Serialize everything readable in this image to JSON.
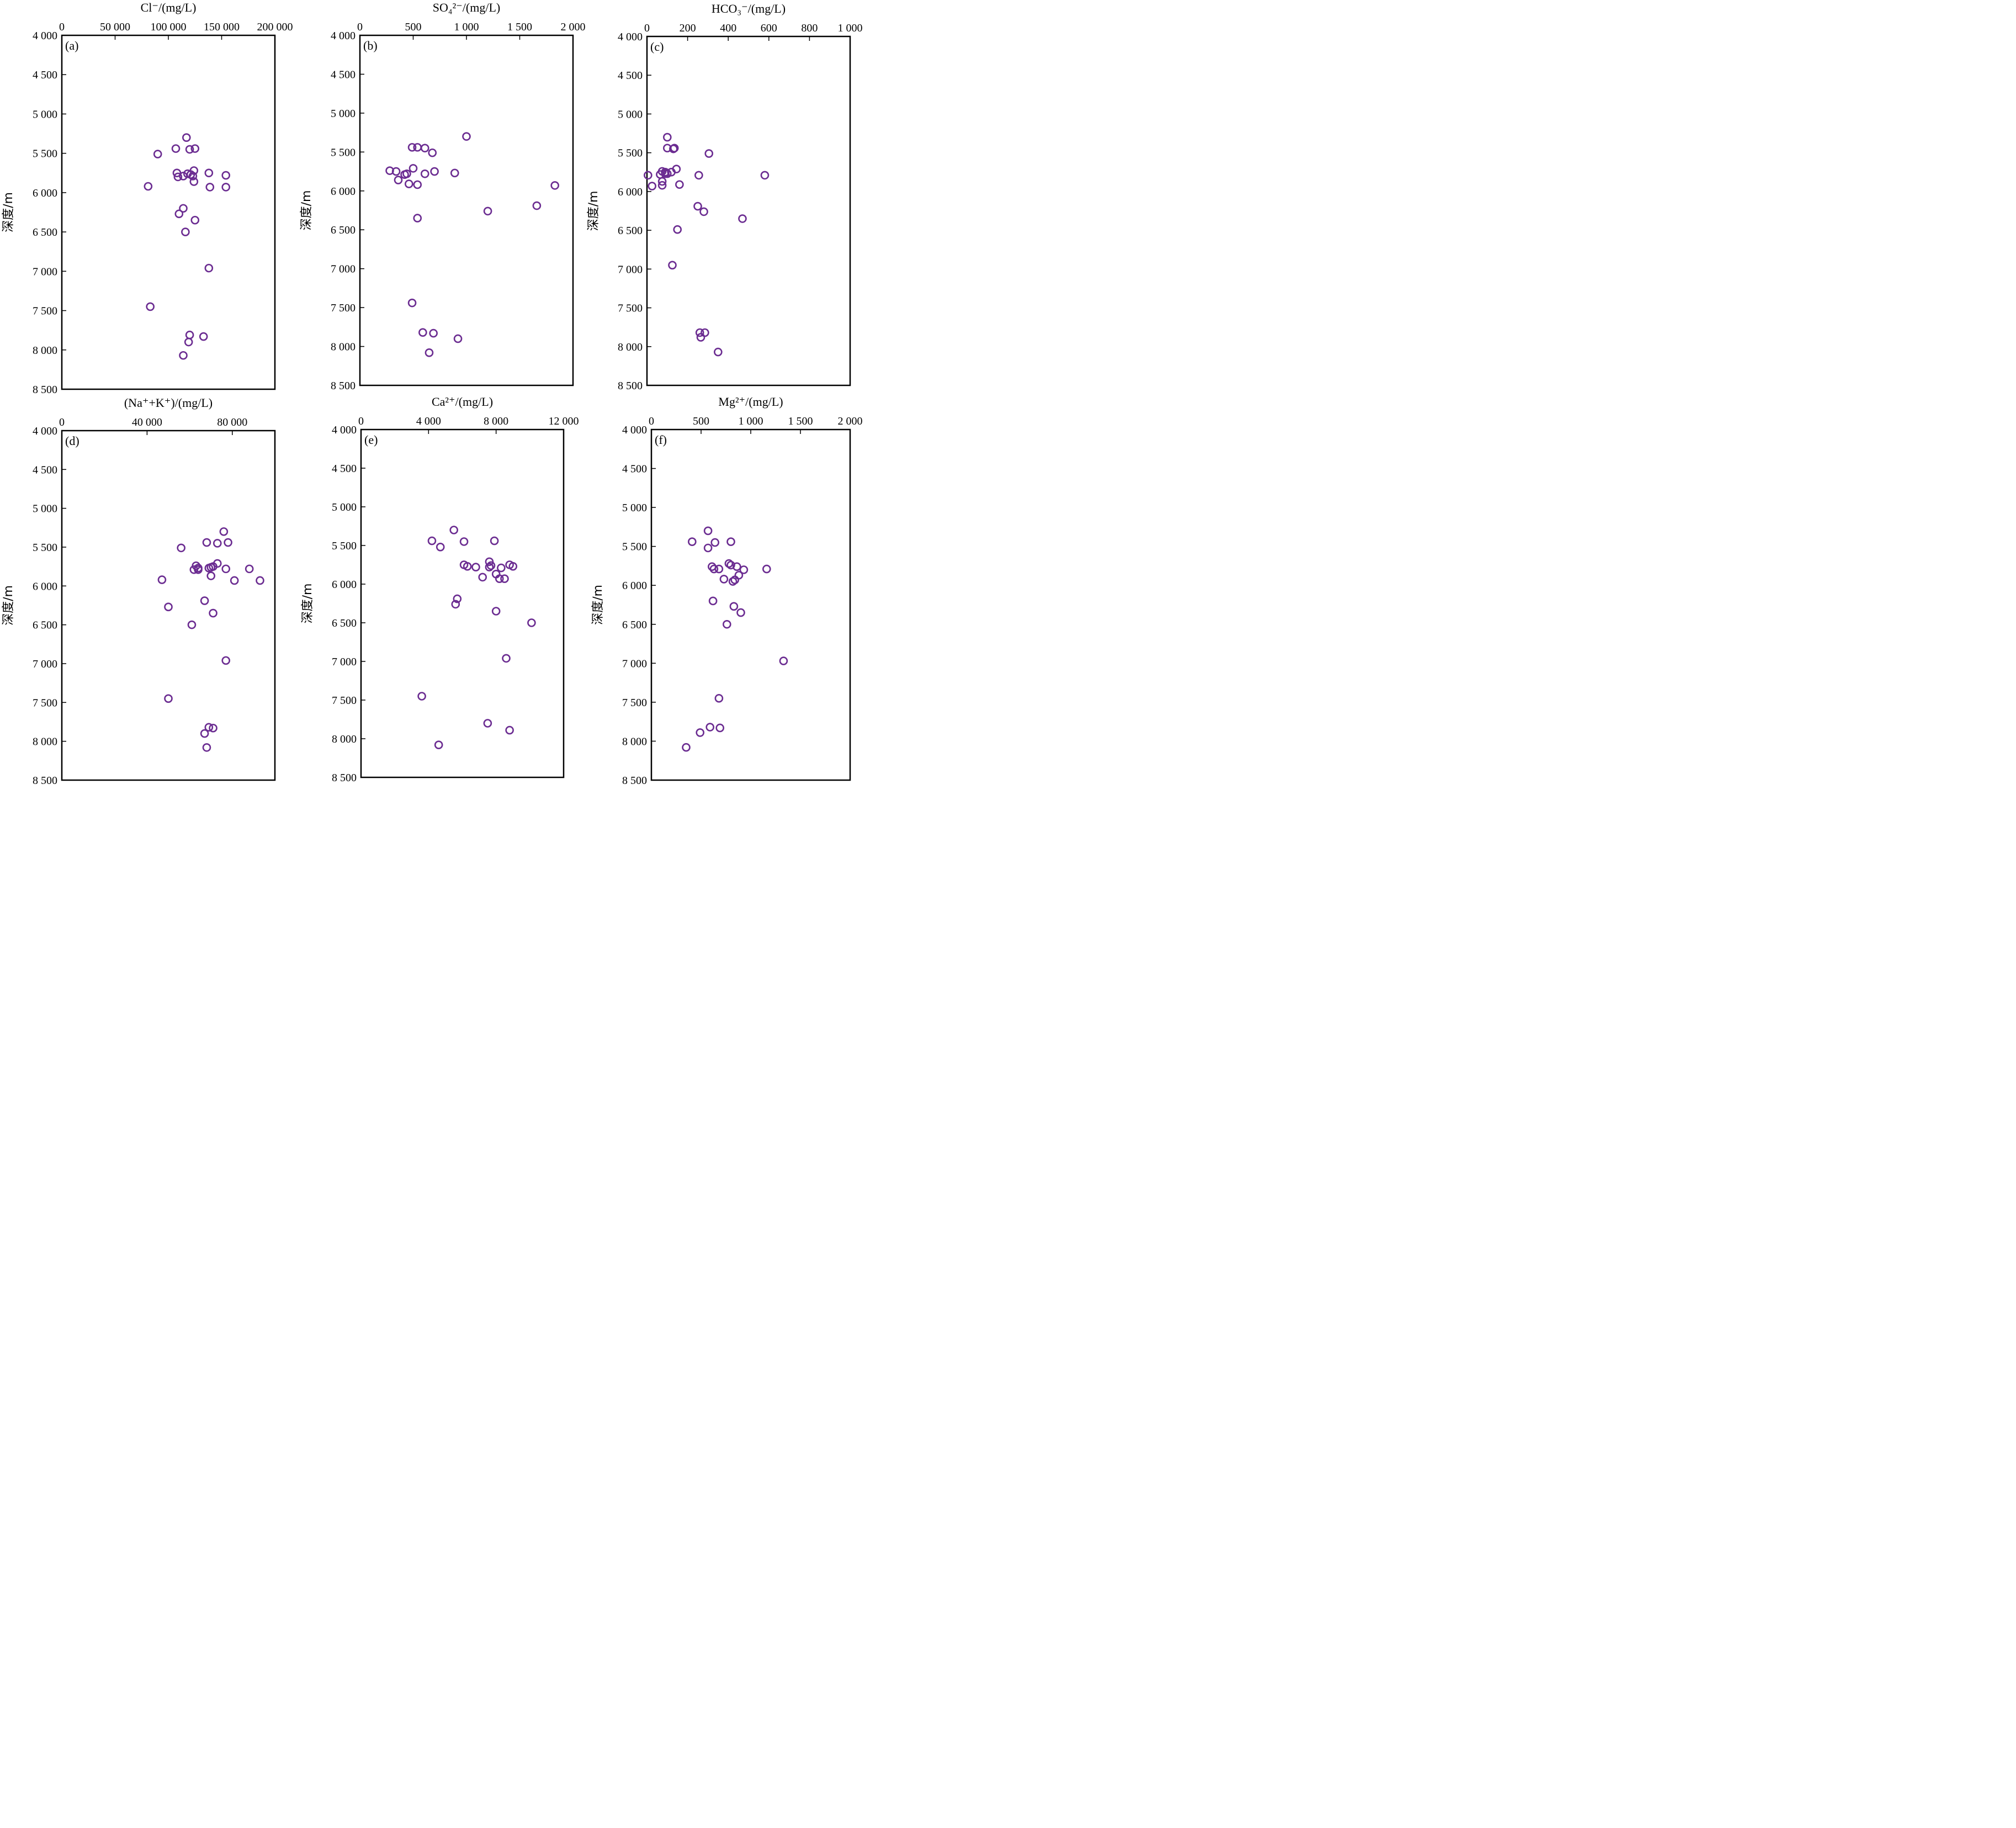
{
  "figure": {
    "marker_color": "#6b2c91"
  },
  "chart_data": [
    {
      "panel": "(a)",
      "type": "scatter",
      "xlabel": "Cl⁻/(mg/L)",
      "ylabel": "深度/m",
      "x_axis_position": "top",
      "y_inverted": true,
      "xlim": [
        0,
        200000
      ],
      "ylim": [
        4000,
        8500
      ],
      "xticks": [
        0,
        50000,
        100000,
        150000,
        200000
      ],
      "xtick_labels": [
        "0",
        "50 000",
        "100 000",
        "150 000",
        "200 000"
      ],
      "yticks": [
        4000,
        4500,
        5000,
        5500,
        6000,
        6500,
        7000,
        7500,
        8000,
        8500
      ],
      "ytick_labels": [
        "4 000",
        "4 500",
        "5 000",
        "5 500",
        "6 000",
        "6 500",
        "7 000",
        "7 500",
        "8 000",
        "8 500"
      ],
      "points": [
        [
          117000,
          5300
        ],
        [
          107000,
          5440
        ],
        [
          125000,
          5440
        ],
        [
          120000,
          5450
        ],
        [
          90000,
          5510
        ],
        [
          124000,
          5720
        ],
        [
          108000,
          5750
        ],
        [
          138000,
          5750
        ],
        [
          118000,
          5760
        ],
        [
          121000,
          5770
        ],
        [
          114000,
          5790
        ],
        [
          123000,
          5790
        ],
        [
          109000,
          5800
        ],
        [
          154000,
          5780
        ],
        [
          124000,
          5860
        ],
        [
          81000,
          5920
        ],
        [
          139000,
          5930
        ],
        [
          154000,
          5930
        ],
        [
          114000,
          6200
        ],
        [
          110000,
          6270
        ],
        [
          125000,
          6350
        ],
        [
          116000,
          6500
        ],
        [
          138000,
          6960
        ],
        [
          83000,
          7450
        ],
        [
          120000,
          7810
        ],
        [
          133000,
          7830
        ],
        [
          119000,
          7900
        ],
        [
          114000,
          8070
        ]
      ]
    },
    {
      "panel": "(b)",
      "type": "scatter",
      "xlabel": "SO₄²⁻/(mg/L)",
      "ylabel": "深度/m",
      "x_axis_position": "top",
      "y_inverted": true,
      "xlim": [
        0,
        2000
      ],
      "ylim": [
        4000,
        8500
      ],
      "xticks": [
        0,
        500,
        1000,
        1500,
        2000
      ],
      "xtick_labels": [
        "0",
        "500",
        "1 000",
        "1 500",
        "2 000"
      ],
      "yticks": [
        4000,
        4500,
        5000,
        5500,
        6000,
        6500,
        7000,
        7500,
        8000,
        8500
      ],
      "ytick_labels": [
        "4 000",
        "4 500",
        "5 000",
        "5 500",
        "6 000",
        "6 500",
        "7 000",
        "7 500",
        "8 000",
        "8 500"
      ],
      "points": [
        [
          1000,
          5300
        ],
        [
          490,
          5440
        ],
        [
          540,
          5440
        ],
        [
          610,
          5450
        ],
        [
          680,
          5510
        ],
        [
          500,
          5710
        ],
        [
          280,
          5740
        ],
        [
          340,
          5750
        ],
        [
          700,
          5750
        ],
        [
          440,
          5780
        ],
        [
          610,
          5780
        ],
        [
          890,
          5770
        ],
        [
          420,
          5790
        ],
        [
          360,
          5860
        ],
        [
          1830,
          5930
        ],
        [
          460,
          5910
        ],
        [
          540,
          5920
        ],
        [
          1660,
          6190
        ],
        [
          1200,
          6260
        ],
        [
          540,
          6350
        ],
        [
          490,
          7440
        ],
        [
          590,
          7820
        ],
        [
          690,
          7830
        ],
        [
          920,
          7900
        ],
        [
          650,
          8080
        ]
      ]
    },
    {
      "panel": "(c)",
      "type": "scatter",
      "xlabel": "HCO₃⁻/(mg/L)",
      "ylabel": "深度/m",
      "x_axis_position": "top",
      "y_inverted": true,
      "xlim": [
        0,
        1000
      ],
      "ylim": [
        4000,
        8500
      ],
      "xticks": [
        0,
        200,
        400,
        600,
        800,
        1000
      ],
      "xtick_labels": [
        "0",
        "200",
        "400",
        "600",
        "800",
        "1 000"
      ],
      "yticks": [
        4000,
        4500,
        5000,
        5500,
        6000,
        6500,
        7000,
        7500,
        8000,
        8500
      ],
      "ytick_labels": [
        "4 000",
        "4 500",
        "5 000",
        "5 500",
        "6 000",
        "6 500",
        "7 000",
        "7 500",
        "8 000",
        "8 500"
      ],
      "points": [
        [
          100,
          5300
        ],
        [
          100,
          5440
        ],
        [
          135,
          5440
        ],
        [
          130,
          5450
        ],
        [
          305,
          5510
        ],
        [
          145,
          5710
        ],
        [
          75,
          5740
        ],
        [
          90,
          5750
        ],
        [
          120,
          5750
        ],
        [
          90,
          5770
        ],
        [
          100,
          5770
        ],
        [
          65,
          5780
        ],
        [
          5,
          5790
        ],
        [
          580,
          5790
        ],
        [
          255,
          5790
        ],
        [
          75,
          5870
        ],
        [
          160,
          5910
        ],
        [
          75,
          5920
        ],
        [
          25,
          5930
        ],
        [
          250,
          6190
        ],
        [
          280,
          6260
        ],
        [
          470,
          6350
        ],
        [
          150,
          6490
        ],
        [
          125,
          6950
        ],
        [
          260,
          7820
        ],
        [
          285,
          7820
        ],
        [
          265,
          7880
        ],
        [
          350,
          8070
        ]
      ]
    },
    {
      "panel": "(d)",
      "type": "scatter",
      "xlabel": "(Na⁺+K⁺)/(mg/L)",
      "ylabel": "深度/m",
      "x_axis_position": "top",
      "y_inverted": true,
      "xlim": [
        0,
        100000
      ],
      "ylim": [
        4000,
        8500
      ],
      "xticks": [
        0,
        40000,
        80000
      ],
      "xtick_labels": [
        "0",
        "40 000",
        "80 000"
      ],
      "yticks": [
        4000,
        4500,
        5000,
        5500,
        6000,
        6500,
        7000,
        7500,
        8000,
        8500
      ],
      "ytick_labels": [
        "4 000",
        "4 500",
        "5 000",
        "5 500",
        "6 000",
        "6 500",
        "7 000",
        "7 500",
        "8 000",
        "8 500"
      ],
      "points": [
        [
          76000,
          5300
        ],
        [
          68000,
          5440
        ],
        [
          78000,
          5440
        ],
        [
          73000,
          5450
        ],
        [
          56000,
          5510
        ],
        [
          73000,
          5710
        ],
        [
          63000,
          5740
        ],
        [
          71000,
          5750
        ],
        [
          70000,
          5760
        ],
        [
          64000,
          5770
        ],
        [
          69000,
          5770
        ],
        [
          77000,
          5780
        ],
        [
          88000,
          5780
        ],
        [
          62000,
          5790
        ],
        [
          64000,
          5790
        ],
        [
          70000,
          5870
        ],
        [
          47000,
          5920
        ],
        [
          81000,
          5930
        ],
        [
          93000,
          5930
        ],
        [
          67000,
          6190
        ],
        [
          50000,
          6270
        ],
        [
          71000,
          6350
        ],
        [
          61000,
          6500
        ],
        [
          77000,
          6960
        ],
        [
          50000,
          7450
        ],
        [
          69000,
          7820
        ],
        [
          71000,
          7830
        ],
        [
          67000,
          7900
        ],
        [
          68000,
          8080
        ]
      ]
    },
    {
      "panel": "(e)",
      "type": "scatter",
      "xlabel": "Ca²⁺/(mg/L)",
      "ylabel": "深度/m",
      "x_axis_position": "top",
      "y_inverted": true,
      "xlim": [
        0,
        12000
      ],
      "ylim": [
        4000,
        8500
      ],
      "xticks": [
        0,
        4000,
        8000,
        12000
      ],
      "xtick_labels": [
        "0",
        "4 000",
        "8 000",
        "12 000"
      ],
      "yticks": [
        4000,
        4500,
        5000,
        5500,
        6000,
        6500,
        7000,
        7500,
        8000,
        8500
      ],
      "ytick_labels": [
        "4 000",
        "4 500",
        "5 000",
        "5 500",
        "6 000",
        "6 500",
        "7 000",
        "7 500",
        "8 000",
        "8 500"
      ],
      "points": [
        [
          5500,
          5300
        ],
        [
          4200,
          5440
        ],
        [
          6100,
          5450
        ],
        [
          7900,
          5440
        ],
        [
          4700,
          5520
        ],
        [
          7600,
          5710
        ],
        [
          6100,
          5750
        ],
        [
          8800,
          5750
        ],
        [
          6300,
          5770
        ],
        [
          6800,
          5780
        ],
        [
          7600,
          5780
        ],
        [
          9000,
          5770
        ],
        [
          7700,
          5760
        ],
        [
          8300,
          5790
        ],
        [
          8000,
          5870
        ],
        [
          7200,
          5910
        ],
        [
          8200,
          5930
        ],
        [
          8500,
          5930
        ],
        [
          5700,
          6190
        ],
        [
          5600,
          6260
        ],
        [
          8000,
          6350
        ],
        [
          10100,
          6500
        ],
        [
          8600,
          6960
        ],
        [
          3600,
          7450
        ],
        [
          7500,
          7800
        ],
        [
          8800,
          7890
        ],
        [
          4600,
          8080
        ]
      ]
    },
    {
      "panel": "(f)",
      "type": "scatter",
      "xlabel": "Mg²⁺/(mg/L)",
      "ylabel": "深度/m",
      "x_axis_position": "top",
      "y_inverted": true,
      "xlim": [
        0,
        2000
      ],
      "ylim": [
        4000,
        8500
      ],
      "xticks": [
        0,
        500,
        1000,
        1500,
        2000
      ],
      "xtick_labels": [
        "0",
        "500",
        "1 000",
        "1 500",
        "2 000"
      ],
      "yticks": [
        4000,
        4500,
        5000,
        5500,
        6000,
        6500,
        7000,
        7500,
        8000,
        8500
      ],
      "ytick_labels": [
        "4 000",
        "4 500",
        "5 000",
        "5 500",
        "6 000",
        "6 500",
        "7 000",
        "7 500",
        "8 000",
        "8 500"
      ],
      "points": [
        [
          570,
          5300
        ],
        [
          410,
          5440
        ],
        [
          640,
          5450
        ],
        [
          800,
          5440
        ],
        [
          570,
          5520
        ],
        [
          780,
          5720
        ],
        [
          800,
          5740
        ],
        [
          860,
          5760
        ],
        [
          610,
          5760
        ],
        [
          630,
          5790
        ],
        [
          680,
          5790
        ],
        [
          930,
          5800
        ],
        [
          1160,
          5790
        ],
        [
          880,
          5870
        ],
        [
          730,
          5920
        ],
        [
          840,
          5930
        ],
        [
          820,
          5950
        ],
        [
          620,
          6200
        ],
        [
          830,
          6270
        ],
        [
          900,
          6350
        ],
        [
          760,
          6500
        ],
        [
          1330,
          6970
        ],
        [
          680,
          7450
        ],
        [
          590,
          7820
        ],
        [
          690,
          7830
        ],
        [
          490,
          7890
        ],
        [
          350,
          8080
        ]
      ]
    }
  ]
}
